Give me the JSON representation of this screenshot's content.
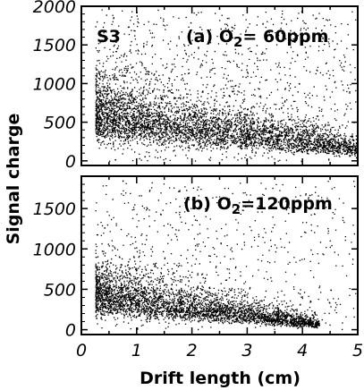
{
  "chart_data": [
    {
      "type": "scatter",
      "panel_id": "(a)",
      "sample_label": "S3",
      "condition_species": "O",
      "condition_subscript": "2",
      "condition_value": "= 60ppm",
      "xlim": [
        0,
        5
      ],
      "ylim": [
        -60,
        2000
      ],
      "y_ticks": [
        0,
        500,
        1000,
        1500,
        2000
      ],
      "x_ticks": [
        0,
        1,
        2,
        3,
        4,
        5
      ],
      "show_x_tick_labels": false,
      "band": {
        "x_range": [
          0.25,
          5.0
        ],
        "median_at_x0": 650,
        "median_slope": -95,
        "spread_frac": 0.38,
        "tail_frac": 0.18,
        "n_points": 5200
      }
    },
    {
      "type": "scatter",
      "panel_id": "(b)",
      "condition_species": "O",
      "condition_subscript": "2",
      "condition_value": "=120ppm",
      "xlim": [
        0,
        5
      ],
      "ylim": [
        -60,
        1900
      ],
      "y_ticks": [
        0,
        500,
        1000,
        1500
      ],
      "x_ticks": [
        0,
        1,
        2,
        3,
        4,
        5
      ],
      "show_x_tick_labels": true,
      "band": {
        "x_range": [
          0.25,
          4.3
        ],
        "median_at_x0": 480,
        "median_slope": -95,
        "spread_frac": 0.42,
        "tail_frac": 0.14,
        "n_points": 4200
      }
    }
  ],
  "axes": {
    "xlabel": "Drift length (cm)",
    "ylabel": "Signal charge"
  }
}
